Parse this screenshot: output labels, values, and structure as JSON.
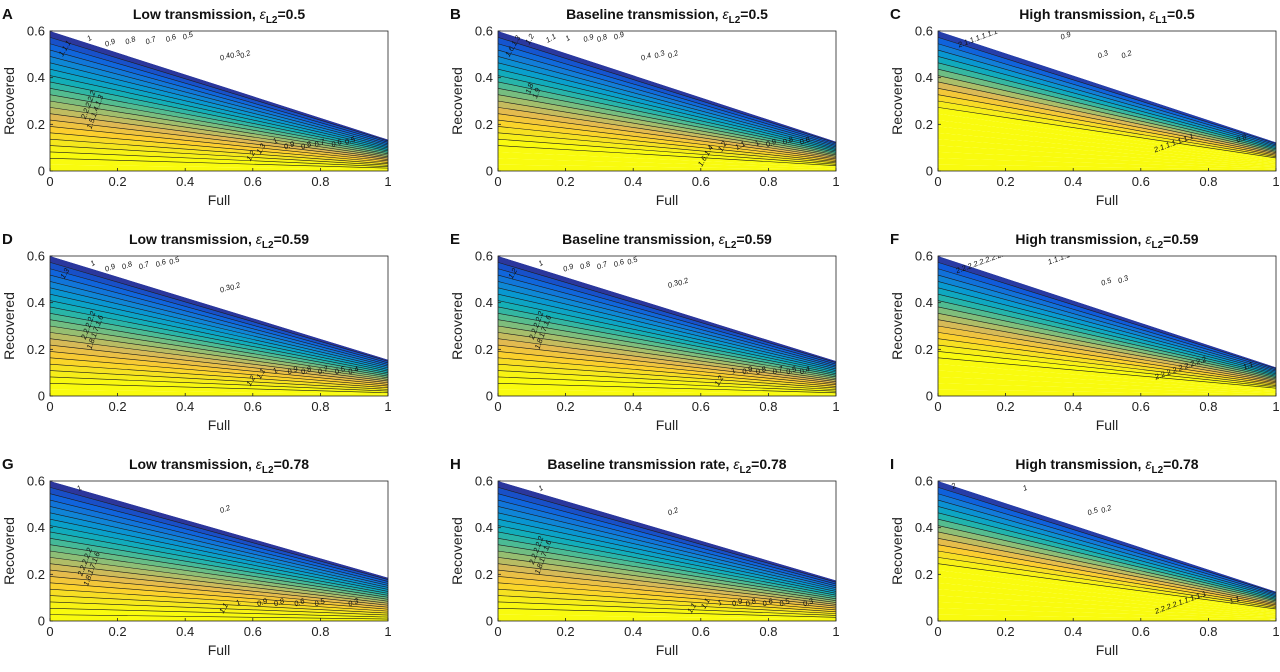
{
  "figure": {
    "colormap": "parula"
  },
  "chart_data": [
    {
      "type": "contour",
      "panel_letter": "A",
      "title": "Low transmission, ",
      "eps_label": "ε",
      "eps_sub": "L2",
      "eps_value": "=0.5",
      "xlabel": "Full",
      "ylabel": "Recovered",
      "xlim": [
        0,
        1
      ],
      "ylim": [
        0,
        0.6
      ],
      "xticks": [
        "0",
        "0.2",
        "0.4",
        "0.6",
        "0.8",
        "1"
      ],
      "yticks": [
        "0",
        "0.2",
        "0.4",
        "0.6"
      ],
      "boundary_slope": 0.45,
      "saturation_offset": 0.12,
      "grid": false,
      "labels": [
        {
          "text": "1.1.1",
          "x": 0.05,
          "y": 0.52,
          "rot": -60
        },
        {
          "text": "1",
          "x": 0.12,
          "y": 0.56,
          "rot": -30
        },
        {
          "text": "0.9",
          "x": 0.18,
          "y": 0.54,
          "rot": -20
        },
        {
          "text": "0.8",
          "x": 0.24,
          "y": 0.55,
          "rot": -20
        },
        {
          "text": "0.7",
          "x": 0.3,
          "y": 0.55,
          "rot": -20
        },
        {
          "text": "0.6",
          "x": 0.36,
          "y": 0.56,
          "rot": -20
        },
        {
          "text": "0.5",
          "x": 0.41,
          "y": 0.57,
          "rot": -20
        },
        {
          "text": "0.4",
          "x": 0.52,
          "y": 0.48,
          "rot": -20
        },
        {
          "text": "0.3",
          "x": 0.55,
          "y": 0.49,
          "rot": -20
        },
        {
          "text": "0.2",
          "x": 0.58,
          "y": 0.49,
          "rot": -20
        },
        {
          "text": "2.2.2.2.2",
          "x": 0.12,
          "y": 0.28,
          "rot": -70
        },
        {
          "text": "1.5.1.4.1.3",
          "x": 0.14,
          "y": 0.25,
          "rot": -70
        },
        {
          "text": "1.2",
          "x": 0.6,
          "y": 0.06,
          "rot": -60
        },
        {
          "text": "1.3",
          "x": 0.63,
          "y": 0.09,
          "rot": -60
        },
        {
          "text": "1",
          "x": 0.67,
          "y": 0.12,
          "rot": -30
        },
        {
          "text": "0.9",
          "x": 0.71,
          "y": 0.1,
          "rot": -20
        },
        {
          "text": "0.8",
          "x": 0.76,
          "y": 0.1,
          "rot": -20
        },
        {
          "text": "0.7",
          "x": 0.8,
          "y": 0.11,
          "rot": -20
        },
        {
          "text": "0.6",
          "x": 0.85,
          "y": 0.11,
          "rot": -20
        },
        {
          "text": "0.5",
          "x": 0.89,
          "y": 0.12,
          "rot": -20
        }
      ]
    },
    {
      "type": "contour",
      "panel_letter": "B",
      "title": "Baseline transmission, ",
      "eps_label": "ε",
      "eps_sub": "L2",
      "eps_value": "=0.5",
      "xlabel": "Full",
      "ylabel": "Recovered",
      "xlim": [
        0,
        1
      ],
      "ylim": [
        0,
        0.6
      ],
      "xticks": [
        "0",
        "0.2",
        "0.4",
        "0.6",
        "0.8",
        "1"
      ],
      "yticks": [
        "0",
        "0.2",
        "0.4",
        "0.6"
      ],
      "boundary_slope": 0.42,
      "saturation_offset": 0.2,
      "grid": false,
      "labels": [
        {
          "text": "1.6.1.3",
          "x": 0.05,
          "y": 0.53,
          "rot": -60
        },
        {
          "text": "1.2",
          "x": 0.1,
          "y": 0.56,
          "rot": -60
        },
        {
          "text": "1.1",
          "x": 0.16,
          "y": 0.56,
          "rot": -30
        },
        {
          "text": "1",
          "x": 0.21,
          "y": 0.56,
          "rot": -30
        },
        {
          "text": "0.9",
          "x": 0.27,
          "y": 0.56,
          "rot": -20
        },
        {
          "text": "0.8",
          "x": 0.31,
          "y": 0.56,
          "rot": -20
        },
        {
          "text": "0.9",
          "x": 0.36,
          "y": 0.57,
          "rot": -20
        },
        {
          "text": "0.4",
          "x": 0.44,
          "y": 0.48,
          "rot": -20
        },
        {
          "text": "0.3",
          "x": 0.48,
          "y": 0.49,
          "rot": -20
        },
        {
          "text": "0.2",
          "x": 0.52,
          "y": 0.49,
          "rot": -20
        },
        {
          "text": "1.8",
          "x": 0.1,
          "y": 0.35,
          "rot": -70
        },
        {
          "text": "1.9",
          "x": 0.12,
          "y": 0.33,
          "rot": -70
        },
        {
          "text": "1.6.1.4",
          "x": 0.62,
          "y": 0.06,
          "rot": -60
        },
        {
          "text": "1.2",
          "x": 0.67,
          "y": 0.1,
          "rot": -60
        },
        {
          "text": "1.1",
          "x": 0.72,
          "y": 0.1,
          "rot": -30
        },
        {
          "text": "1",
          "x": 0.77,
          "y": 0.11,
          "rot": -30
        },
        {
          "text": "0.9",
          "x": 0.81,
          "y": 0.11,
          "rot": -20
        },
        {
          "text": "0.8",
          "x": 0.86,
          "y": 0.12,
          "rot": -20
        },
        {
          "text": "0.6",
          "x": 0.91,
          "y": 0.12,
          "rot": -20
        }
      ]
    },
    {
      "type": "contour",
      "panel_letter": "C",
      "title": "High transmission, ",
      "eps_label": "ε",
      "eps_sub": "L1",
      "eps_value": "=0.5",
      "xlabel": "Full",
      "ylabel": "Recovered",
      "xlim": [
        0,
        1
      ],
      "ylim": [
        0,
        0.6
      ],
      "xticks": [
        "0",
        "0.2",
        "0.4",
        "0.6",
        "0.8",
        "1"
      ],
      "yticks": [
        "0",
        "0.2",
        "0.4",
        "0.6"
      ],
      "boundary_slope": 0.41,
      "saturation_offset": 0.44,
      "grid": false,
      "labels": [
        {
          "text": "2.1.1.1.1.1.1",
          "x": 0.12,
          "y": 0.56,
          "rot": -20
        },
        {
          "text": "0.9",
          "x": 0.38,
          "y": 0.57,
          "rot": -20
        },
        {
          "text": "0.3",
          "x": 0.49,
          "y": 0.49,
          "rot": -20
        },
        {
          "text": "0.2",
          "x": 0.56,
          "y": 0.49,
          "rot": -20
        },
        {
          "text": "2.1.1.1.1.1.1",
          "x": 0.7,
          "y": 0.11,
          "rot": -20
        },
        {
          "text": "0.8",
          "x": 0.9,
          "y": 0.13,
          "rot": -20
        }
      ]
    },
    {
      "type": "contour",
      "panel_letter": "D",
      "title": "Low transmission, ",
      "eps_label": "ε",
      "eps_sub": "L2",
      "eps_value": "=0.59",
      "xlabel": "Full",
      "ylabel": "Recovered",
      "xlim": [
        0,
        1
      ],
      "ylim": [
        0,
        0.6
      ],
      "xticks": [
        "0",
        "0.2",
        "0.4",
        "0.6",
        "0.8",
        "1"
      ],
      "yticks": [
        "0",
        "0.2",
        "0.4",
        "0.6"
      ],
      "boundary_slope": 0.52,
      "saturation_offset": 0.1,
      "grid": false,
      "labels": [
        {
          "text": "1.3",
          "x": 0.05,
          "y": 0.52,
          "rot": -60
        },
        {
          "text": "1",
          "x": 0.13,
          "y": 0.56,
          "rot": -30
        },
        {
          "text": "0.9",
          "x": 0.18,
          "y": 0.54,
          "rot": -20
        },
        {
          "text": "0.8",
          "x": 0.23,
          "y": 0.55,
          "rot": -20
        },
        {
          "text": "0.7",
          "x": 0.28,
          "y": 0.55,
          "rot": -20
        },
        {
          "text": "0.6",
          "x": 0.33,
          "y": 0.56,
          "rot": -20
        },
        {
          "text": "0.5",
          "x": 0.37,
          "y": 0.57,
          "rot": -20
        },
        {
          "text": "0.3",
          "x": 0.52,
          "y": 0.45,
          "rot": -20
        },
        {
          "text": "0.2",
          "x": 0.55,
          "y": 0.46,
          "rot": -20
        },
        {
          "text": "2.2.2.2.2",
          "x": 0.12,
          "y": 0.3,
          "rot": -70
        },
        {
          "text": "1.8.1.7.1.6",
          "x": 0.14,
          "y": 0.27,
          "rot": -70
        },
        {
          "text": "1.2",
          "x": 0.6,
          "y": 0.06,
          "rot": -60
        },
        {
          "text": "1.1",
          "x": 0.63,
          "y": 0.09,
          "rot": -60
        },
        {
          "text": "1",
          "x": 0.67,
          "y": 0.1,
          "rot": -30
        },
        {
          "text": "0.9",
          "x": 0.72,
          "y": 0.1,
          "rot": -20
        },
        {
          "text": "0.8",
          "x": 0.76,
          "y": 0.1,
          "rot": -20
        },
        {
          "text": "0.7",
          "x": 0.81,
          "y": 0.1,
          "rot": -20
        },
        {
          "text": "0.5",
          "x": 0.86,
          "y": 0.1,
          "rot": -20
        },
        {
          "text": "0.4",
          "x": 0.9,
          "y": 0.1,
          "rot": -20
        }
      ]
    },
    {
      "type": "contour",
      "panel_letter": "E",
      "title": "Baseline transmission, ",
      "eps_label": "ε",
      "eps_sub": "L2",
      "eps_value": "=0.59",
      "xlabel": "Full",
      "ylabel": "Recovered",
      "xlim": [
        0,
        1
      ],
      "ylim": [
        0,
        0.6
      ],
      "xticks": [
        "0",
        "0.2",
        "0.4",
        "0.6",
        "0.8",
        "1"
      ],
      "yticks": [
        "0",
        "0.2",
        "0.4",
        "0.6"
      ],
      "boundary_slope": 0.5,
      "saturation_offset": 0.13,
      "grid": false,
      "labels": [
        {
          "text": "1.2",
          "x": 0.05,
          "y": 0.52,
          "rot": -60
        },
        {
          "text": "1",
          "x": 0.13,
          "y": 0.56,
          "rot": -30
        },
        {
          "text": "0.9",
          "x": 0.21,
          "y": 0.54,
          "rot": -20
        },
        {
          "text": "0.8",
          "x": 0.26,
          "y": 0.55,
          "rot": -20
        },
        {
          "text": "0.7",
          "x": 0.31,
          "y": 0.55,
          "rot": -20
        },
        {
          "text": "0.6",
          "x": 0.36,
          "y": 0.56,
          "rot": -20
        },
        {
          "text": "0.5",
          "x": 0.4,
          "y": 0.57,
          "rot": -20
        },
        {
          "text": "0.3",
          "x": 0.52,
          "y": 0.47,
          "rot": -20
        },
        {
          "text": "0.2",
          "x": 0.55,
          "y": 0.48,
          "rot": -20
        },
        {
          "text": "2.2.2.2.2",
          "x": 0.12,
          "y": 0.3,
          "rot": -70
        },
        {
          "text": "1.8.1.7.1.6",
          "x": 0.14,
          "y": 0.27,
          "rot": -70
        },
        {
          "text": "1.2",
          "x": 0.66,
          "y": 0.06,
          "rot": -60
        },
        {
          "text": "1",
          "x": 0.7,
          "y": 0.1,
          "rot": -30
        },
        {
          "text": "0.9",
          "x": 0.74,
          "y": 0.1,
          "rot": -20
        },
        {
          "text": "0.8",
          "x": 0.78,
          "y": 0.1,
          "rot": -20
        },
        {
          "text": "0.7",
          "x": 0.83,
          "y": 0.1,
          "rot": -20
        },
        {
          "text": "0.5",
          "x": 0.87,
          "y": 0.1,
          "rot": -20
        },
        {
          "text": "0.4",
          "x": 0.91,
          "y": 0.1,
          "rot": -20
        }
      ]
    },
    {
      "type": "contour",
      "panel_letter": "F",
      "title": "High transmission, ",
      "eps_label": "ε",
      "eps_sub": "L2",
      "eps_value": "=0.59",
      "xlabel": "Full",
      "ylabel": "Recovered",
      "xlim": [
        0,
        1
      ],
      "ylim": [
        0,
        0.6
      ],
      "xticks": [
        "0",
        "0.2",
        "0.4",
        "0.6",
        "0.8",
        "1"
      ],
      "yticks": [
        "0",
        "0.2",
        "0.4",
        "0.6"
      ],
      "boundary_slope": 0.41,
      "saturation_offset": 0.3,
      "grid": false,
      "labels": [
        {
          "text": "2.2.2.2.2.2.2.2.2.2",
          "x": 0.14,
          "y": 0.57,
          "rot": -20
        },
        {
          "text": "1.1.1.1",
          "x": 0.36,
          "y": 0.58,
          "rot": -20
        },
        {
          "text": "0.5",
          "x": 0.5,
          "y": 0.48,
          "rot": -20
        },
        {
          "text": "0.3",
          "x": 0.55,
          "y": 0.49,
          "rot": -20
        },
        {
          "text": "2.2.2.2.2.2.2.2.2",
          "x": 0.72,
          "y": 0.11,
          "rot": -20
        },
        {
          "text": "1.1",
          "x": 0.92,
          "y": 0.12,
          "rot": -20
        }
      ]
    },
    {
      "type": "contour",
      "panel_letter": "G",
      "title": "Low transmission, ",
      "eps_label": "ε",
      "eps_sub": "L2",
      "eps_value": "=0.78",
      "xlabel": "Full",
      "ylabel": "Recovered",
      "xlim": [
        0,
        1
      ],
      "ylim": [
        0,
        0.6
      ],
      "xticks": [
        "0",
        "0.2",
        "0.4",
        "0.6",
        "0.8",
        "1"
      ],
      "yticks": [
        "0",
        "0.2",
        "0.4",
        "0.6"
      ],
      "boundary_slope": 0.62,
      "saturation_offset": 0.08,
      "grid": false,
      "labels": [
        {
          "text": "1",
          "x": 0.09,
          "y": 0.56,
          "rot": -30
        },
        {
          "text": "0.2",
          "x": 0.52,
          "y": 0.47,
          "rot": -20
        },
        {
          "text": "2.2.2.2.2",
          "x": 0.11,
          "y": 0.25,
          "rot": -70
        },
        {
          "text": "1.8.1.7.1.6",
          "x": 0.13,
          "y": 0.22,
          "rot": -70
        },
        {
          "text": "1.1",
          "x": 0.52,
          "y": 0.05,
          "rot": -60
        },
        {
          "text": "1",
          "x": 0.56,
          "y": 0.07,
          "rot": -30
        },
        {
          "text": "0.9",
          "x": 0.63,
          "y": 0.07,
          "rot": -20
        },
        {
          "text": "0.8",
          "x": 0.68,
          "y": 0.07,
          "rot": -20
        },
        {
          "text": "0.6",
          "x": 0.74,
          "y": 0.07,
          "rot": -20
        },
        {
          "text": "0.5",
          "x": 0.8,
          "y": 0.07,
          "rot": -20
        },
        {
          "text": "0.3",
          "x": 0.9,
          "y": 0.07,
          "rot": -20
        }
      ]
    },
    {
      "type": "contour",
      "panel_letter": "H",
      "title": "Baseline transmission rate, ",
      "eps_label": "ε",
      "eps_sub": "L2",
      "eps_value": "=0.78",
      "xlabel": "Full",
      "ylabel": "Recovered",
      "xlim": [
        0,
        1
      ],
      "ylim": [
        0,
        0.6
      ],
      "xticks": [
        "0",
        "0.2",
        "0.4",
        "0.6",
        "0.8",
        "1"
      ],
      "yticks": [
        "0",
        "0.2",
        "0.4",
        "0.6"
      ],
      "boundary_slope": 0.58,
      "saturation_offset": 0.1,
      "grid": false,
      "labels": [
        {
          "text": "1",
          "x": 0.13,
          "y": 0.56,
          "rot": -30
        },
        {
          "text": "0.2",
          "x": 0.52,
          "y": 0.46,
          "rot": -20
        },
        {
          "text": "2.2.2.2.2",
          "x": 0.12,
          "y": 0.3,
          "rot": -70
        },
        {
          "text": "1.8.1.7.1.6",
          "x": 0.14,
          "y": 0.27,
          "rot": -70
        },
        {
          "text": "1.1",
          "x": 0.58,
          "y": 0.05,
          "rot": -60
        },
        {
          "text": "1.1",
          "x": 0.62,
          "y": 0.07,
          "rot": -60
        },
        {
          "text": "1",
          "x": 0.66,
          "y": 0.07,
          "rot": -30
        },
        {
          "text": "0.9",
          "x": 0.71,
          "y": 0.07,
          "rot": -20
        },
        {
          "text": "0.8",
          "x": 0.75,
          "y": 0.07,
          "rot": -20
        },
        {
          "text": "0.6",
          "x": 0.8,
          "y": 0.07,
          "rot": -20
        },
        {
          "text": "0.5",
          "x": 0.85,
          "y": 0.07,
          "rot": -20
        },
        {
          "text": "0.3",
          "x": 0.92,
          "y": 0.07,
          "rot": -20
        }
      ]
    },
    {
      "type": "contour",
      "panel_letter": "I",
      "title": "High transmission, ",
      "eps_label": "ε",
      "eps_sub": "L2",
      "eps_value": "=0.78",
      "xlabel": "Full",
      "ylabel": "Recovered",
      "xlim": [
        0,
        1
      ],
      "ylim": [
        0,
        0.6
      ],
      "xticks": [
        "0",
        "0.2",
        "0.4",
        "0.6",
        "0.8",
        "1"
      ],
      "yticks": [
        "0",
        "0.2",
        "0.4",
        "0.6"
      ],
      "boundary_slope": 0.42,
      "saturation_offset": 0.4,
      "grid": false,
      "labels": [
        {
          "text": "2",
          "x": 0.05,
          "y": 0.57,
          "rot": -30
        },
        {
          "text": "1",
          "x": 0.26,
          "y": 0.56,
          "rot": -20
        },
        {
          "text": "0.5",
          "x": 0.46,
          "y": 0.46,
          "rot": -20
        },
        {
          "text": "0.2",
          "x": 0.5,
          "y": 0.47,
          "rot": -20
        },
        {
          "text": "2.2.2.2.1.1.1.1.1",
          "x": 0.72,
          "y": 0.07,
          "rot": -20
        },
        {
          "text": "1.1",
          "x": 0.88,
          "y": 0.08,
          "rot": -20
        }
      ]
    }
  ]
}
